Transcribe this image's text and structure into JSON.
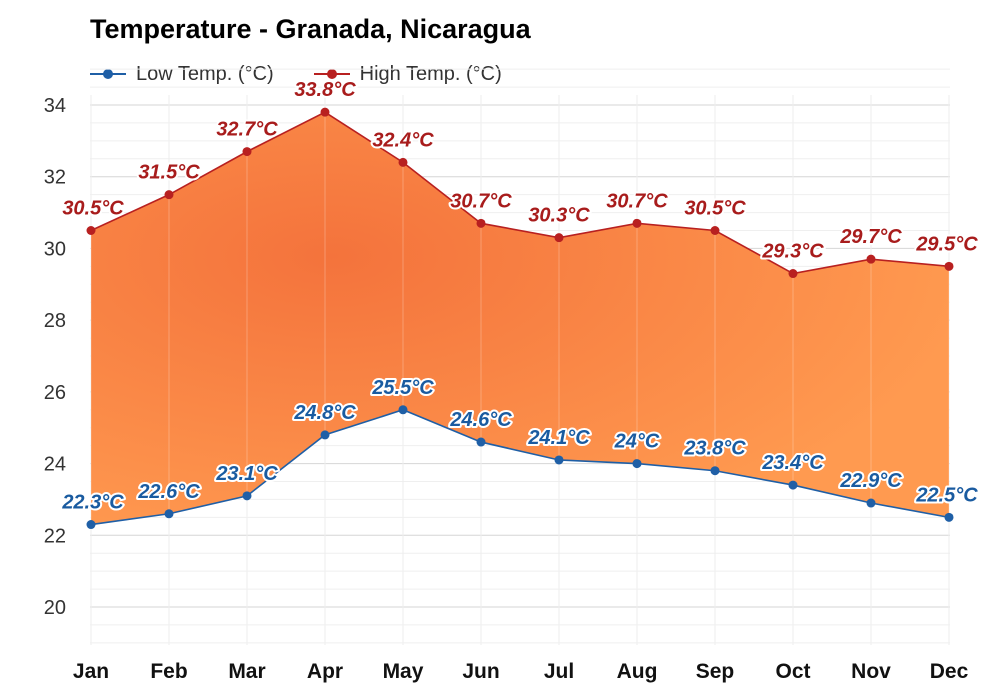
{
  "title": "Temperature - Granada, Nicaragua",
  "legend": {
    "low_label": "Low Temp. (°C)",
    "high_label": "High Temp. (°C)"
  },
  "colors": {
    "low": "#1f5fa6",
    "low_label": "#1a5ba0",
    "high": "#b82020",
    "high_label": "#a81c1c",
    "fill_edge": "#ff9a50",
    "fill_center": "#f4733c",
    "grid": "#e2e2e2"
  },
  "chart_data": {
    "type": "area",
    "title": "Temperature - Granada, Nicaragua",
    "categories": [
      "Jan",
      "Feb",
      "Mar",
      "Apr",
      "May",
      "Jun",
      "Jul",
      "Aug",
      "Sep",
      "Oct",
      "Nov",
      "Dec"
    ],
    "series": [
      {
        "name": "Low Temp. (°C)",
        "values": [
          22.3,
          22.6,
          23.1,
          24.8,
          25.5,
          24.6,
          24.1,
          24,
          23.8,
          23.4,
          22.9,
          22.5
        ],
        "labels": [
          "22.3°C",
          "22.6°C",
          "23.1°C",
          "24.8°C",
          "25.5°C",
          "24.6°C",
          "24.1°C",
          "24°C",
          "23.8°C",
          "23.4°C",
          "22.9°C",
          "22.5°C"
        ]
      },
      {
        "name": "High Temp. (°C)",
        "values": [
          30.5,
          31.5,
          32.7,
          33.8,
          32.4,
          30.7,
          30.3,
          30.7,
          30.5,
          29.3,
          29.7,
          29.5
        ],
        "labels": [
          "30.5°C",
          "31.5°C",
          "32.7°C",
          "33.8°C",
          "32.4°C",
          "30.7°C",
          "30.3°C",
          "30.7°C",
          "30.5°C",
          "29.3°C",
          "29.7°C",
          "29.5°C"
        ]
      }
    ],
    "ylim": [
      19,
      35
    ],
    "yticks": [
      20,
      22,
      24,
      26,
      28,
      30,
      32,
      34
    ],
    "ytick_labels": [
      "20",
      "22",
      "24",
      "26",
      "28",
      "30",
      "32",
      "34"
    ],
    "xlabel": "",
    "ylabel": "",
    "grid": true,
    "legend_position": "top-left"
  }
}
